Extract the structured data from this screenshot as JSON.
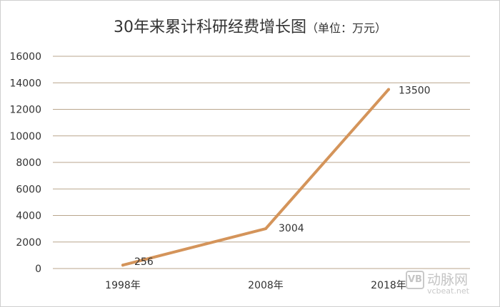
{
  "chart_data": {
    "type": "line",
    "title": "30年来累计科研经费增长图",
    "unit_note": "（单位：万元）",
    "categories": [
      "1998年",
      "2008年",
      "2018年"
    ],
    "series": [
      {
        "values": [
          256,
          3004,
          13500
        ]
      }
    ],
    "ylim": [
      0,
      16000
    ],
    "y_ticks": [
      "0",
      "2000",
      "4000",
      "6000",
      "8000",
      "10000",
      "12000",
      "14000",
      "16000"
    ],
    "data_labels": [
      "256",
      "3004",
      "13500"
    ],
    "grid": true,
    "line_color": "#d4945a",
    "grid_color": "#b9a58c"
  },
  "watermark": {
    "badge": "VB",
    "name": "动脉网",
    "url": "vcbeat.net"
  }
}
